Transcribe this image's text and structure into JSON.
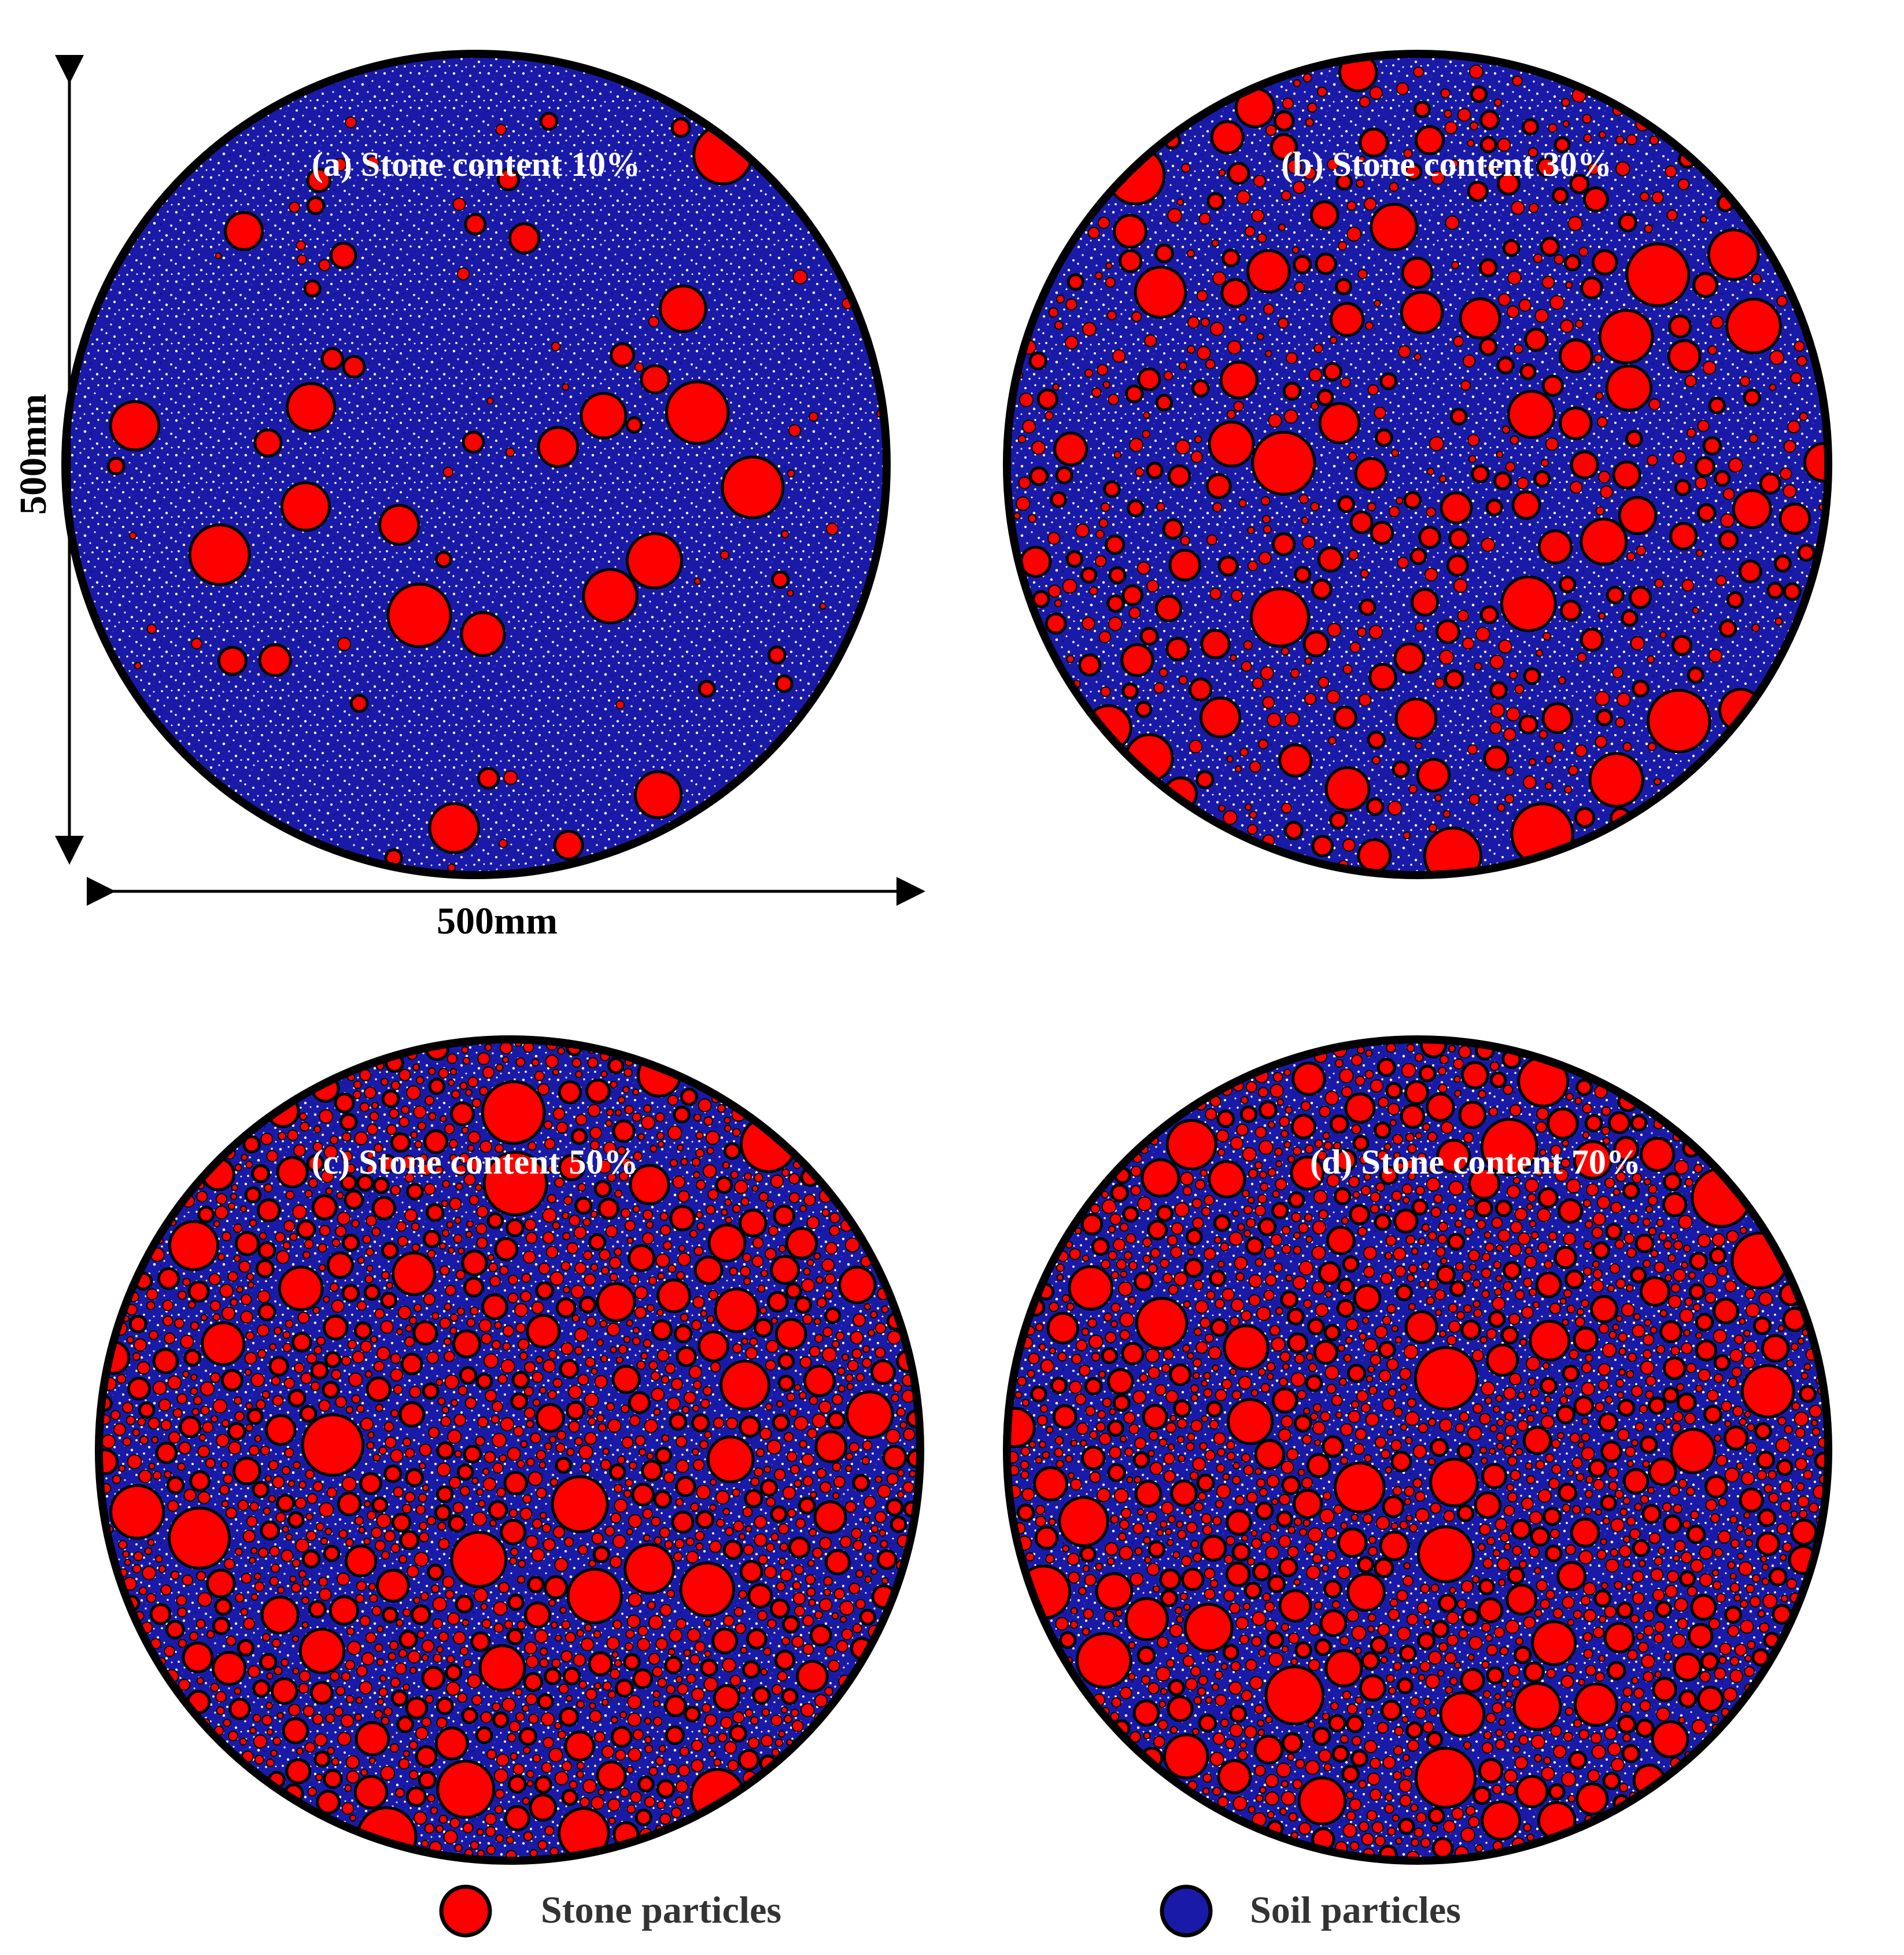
{
  "panels": [
    {
      "id": "a",
      "label": "(a) Stone content 10%",
      "stone_content": 0.1
    },
    {
      "id": "b",
      "label": "(b) Stone content 30%",
      "stone_content": 0.3
    },
    {
      "id": "c",
      "label": "(c) Stone content 50%",
      "stone_content": 0.5
    },
    {
      "id": "d",
      "label": "(d) Stone content 70%",
      "stone_content": 0.7
    }
  ],
  "dimensions": {
    "height_label": "500mm",
    "width_label": "500mm"
  },
  "legend": {
    "stone": "Stone particles",
    "soil": "Soil particles"
  },
  "colors": {
    "stone": "#ff0000",
    "soil": "#1a1aa8",
    "soil_speckle": "#ffffff",
    "outline": "#000000"
  }
}
